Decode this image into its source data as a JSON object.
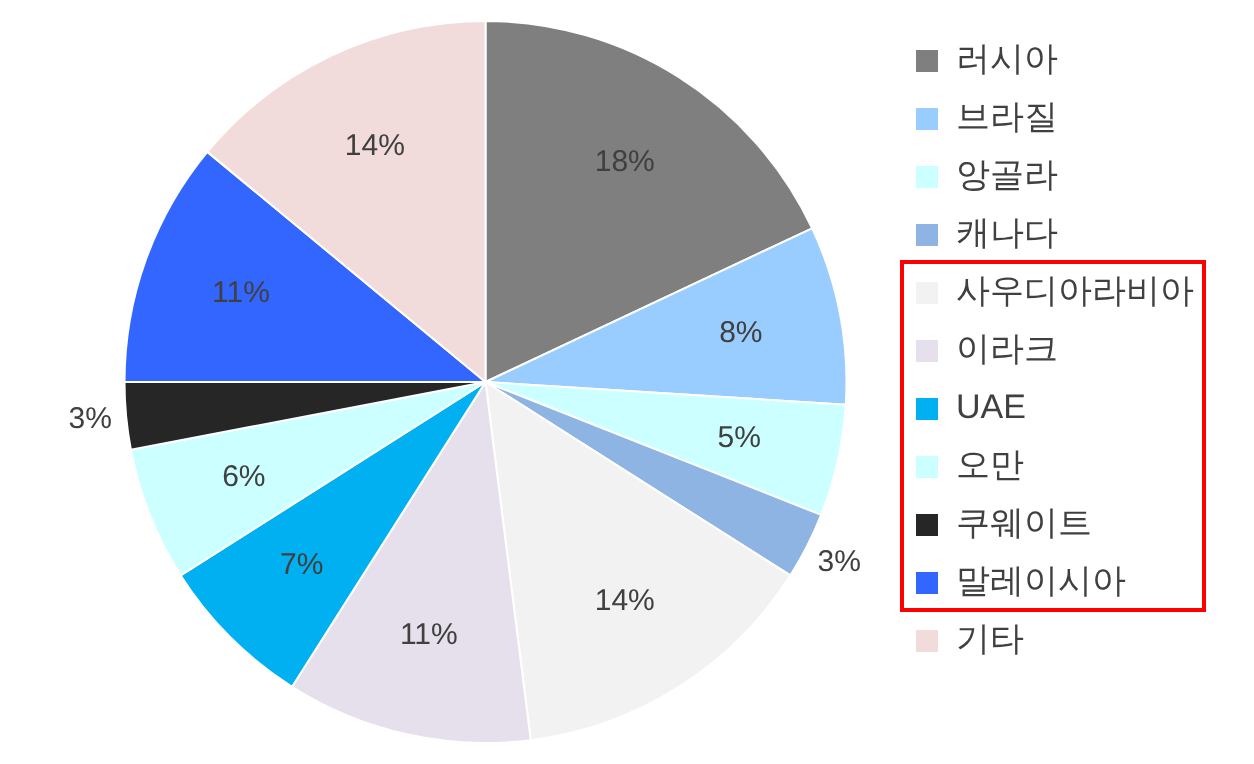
{
  "chart_data": {
    "type": "pie",
    "categories": [
      "러시아",
      "브라질",
      "앙골라",
      "캐나다",
      "사우디아라비아",
      "이라크",
      "UAE",
      "오만",
      "쿠웨이트",
      "말레이시아",
      "기타"
    ],
    "values": [
      18,
      8,
      5,
      3,
      14,
      11,
      7,
      6,
      3,
      11,
      14
    ],
    "value_labels": [
      "18%",
      "8%",
      "5%",
      "3%",
      "14%",
      "11%",
      "7%",
      "6%",
      "3%",
      "11%",
      "14%"
    ],
    "colors": [
      "#7f7f7f",
      "#99ccff",
      "#ccffff",
      "#8eb4e3",
      "#f2f2f2",
      "#e6e0ec",
      "#00b0f0",
      "#ccffff",
      "#262626",
      "#3366ff",
      "#f2dcdb"
    ],
    "legend": "right"
  }
}
